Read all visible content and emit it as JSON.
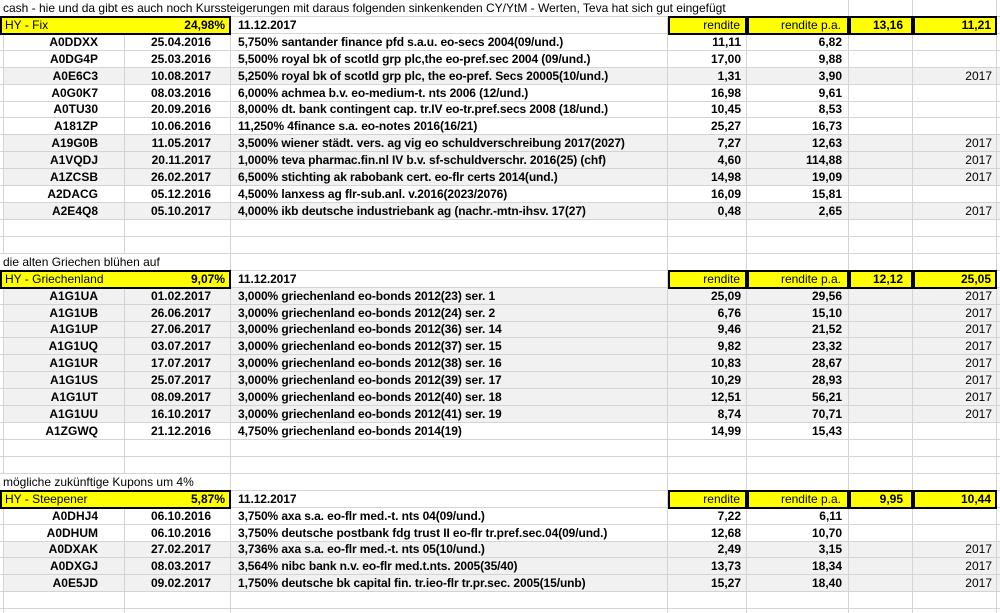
{
  "title_note": "cash - hie und da gibt es auch noch Kurssteigerungen mit daraus folgenden sinkenkenden CY/YtM - Werten, Teva hat sich gut eingefügt",
  "colors": {
    "cell_highlight": "#ffff00",
    "row_stripe": "#f1f1f1",
    "gridline": "#d4d4d4",
    "border_black": "#000000",
    "background": "#ffffff",
    "text": "#000000"
  },
  "sections": [
    {
      "label": "HY - Fix",
      "percent": "24,98%",
      "date": "11.12.2017",
      "note_above": "",
      "header": {
        "col_rendite": "rendite",
        "col_rendite_pa": "rendite p.a.",
        "metric1": "13,16",
        "metric2": "11,21"
      },
      "rows": [
        {
          "wkn": "A0DDXX",
          "kauf_datum": "25.04.2016",
          "beschreibung": "5,750% santander finance pfd s.a.u. eo-secs 2004(09/und.)",
          "rendite": "11,11",
          "rendite_pa": "6,82",
          "jahr": ""
        },
        {
          "wkn": "A0DG4P",
          "kauf_datum": "25.03.2016",
          "beschreibung": "5,500% royal bk of scotld grp plc,the eo-pref.sec 2004 (09/und.)",
          "rendite": "17,00",
          "rendite_pa": "9,88",
          "jahr": ""
        },
        {
          "wkn": "A0E6C3",
          "kauf_datum": "10.08.2017",
          "beschreibung": "5,250% royal bk of scotld grp plc, the eo-pref. Secs 20005(10/und.)",
          "rendite": "1,31",
          "rendite_pa": "3,90",
          "jahr": "2017"
        },
        {
          "wkn": "A0G0K7",
          "kauf_datum": "08.03.2016",
          "beschreibung": "6,000% achmea b.v. eo-medium-t. nts 2006 (12/und.)",
          "rendite": "16,98",
          "rendite_pa": "9,61",
          "jahr": ""
        },
        {
          "wkn": "A0TU30",
          "kauf_datum": "20.09.2016",
          "beschreibung": "8,000% dt. bank contingent cap. tr.IV eo-tr.pref.secs 2008 (18/und.)",
          "rendite": "10,45",
          "rendite_pa": "8,53",
          "jahr": ""
        },
        {
          "wkn": "A181ZP",
          "kauf_datum": "10.06.2016",
          "beschreibung": "11,250% 4finance s.a. eo-notes 2016(16/21)",
          "rendite": "25,27",
          "rendite_pa": "16,73",
          "jahr": ""
        },
        {
          "wkn": "A19G0B",
          "kauf_datum": "11.05.2017",
          "beschreibung": "3,500% wiener städt. vers. ag vig eo schuldverschreibung 2017(2027)",
          "rendite": "7,27",
          "rendite_pa": "12,63",
          "jahr": "2017"
        },
        {
          "wkn": "A1VQDJ",
          "kauf_datum": "20.11.2017",
          "beschreibung": "1,000% teva pharmac.fin.nl IV b.v. sf-schuldverschr. 2016(25) (chf)",
          "rendite": "4,60",
          "rendite_pa": "114,88",
          "jahr": "2017"
        },
        {
          "wkn": "A1ZCSB",
          "kauf_datum": "26.02.2017",
          "beschreibung": "6,500% stichting ak rabobank cert. eo-flr certs 2014(und.)",
          "rendite": "14,98",
          "rendite_pa": "19,09",
          "jahr": "2017"
        },
        {
          "wkn": "A2DACG",
          "kauf_datum": "05.12.2016",
          "beschreibung": "4,500% lanxess ag flr-sub.anl. v.2016(2023/2076)",
          "rendite": "16,09",
          "rendite_pa": "15,81",
          "jahr": ""
        },
        {
          "wkn": "A2E4Q8",
          "kauf_datum": "05.10.2017",
          "beschreibung": "4,000% ikb deutsche industriebank ag (nachr.-mtn-ihsv. 17(27)",
          "rendite": "0,48",
          "rendite_pa": "2,65",
          "jahr": "2017"
        }
      ]
    },
    {
      "label": "HY - Griechenland",
      "percent": "9,07%",
      "date": "11.12.2017",
      "note_above": "die alten Griechen blühen auf",
      "header": {
        "col_rendite": "rendite",
        "col_rendite_pa": "rendite p.a.",
        "metric1": "12,12",
        "metric2": "25,05"
      },
      "rows": [
        {
          "wkn": "A1G1UA",
          "kauf_datum": "01.02.2017",
          "beschreibung": "3,000% griechenland eo-bonds 2012(23) ser. 1",
          "rendite": "25,09",
          "rendite_pa": "29,56",
          "jahr": "2017"
        },
        {
          "wkn": "A1G1UB",
          "kauf_datum": "26.06.2017",
          "beschreibung": "3,000% griechenland eo-bonds 2012(24) ser. 2",
          "rendite": "6,76",
          "rendite_pa": "15,10",
          "jahr": "2017"
        },
        {
          "wkn": "A1G1UP",
          "kauf_datum": "27.06.2017",
          "beschreibung": "3,000% griechenland eo-bonds 2012(36) ser. 14",
          "rendite": "9,46",
          "rendite_pa": "21,52",
          "jahr": "2017"
        },
        {
          "wkn": "A1G1UQ",
          "kauf_datum": "03.07.2017",
          "beschreibung": "3,000% griechenland eo-bonds 2012(37) ser. 15",
          "rendite": "9,82",
          "rendite_pa": "23,32",
          "jahr": "2017"
        },
        {
          "wkn": "A1G1UR",
          "kauf_datum": "17.07.2017",
          "beschreibung": "3,000% griechenland eo-bonds 2012(38) ser. 16",
          "rendite": "10,83",
          "rendite_pa": "28,67",
          "jahr": "2017"
        },
        {
          "wkn": "A1G1US",
          "kauf_datum": "25.07.2017",
          "beschreibung": "3,000% griechenland eo-bonds 2012(39) ser. 17",
          "rendite": "10,29",
          "rendite_pa": "28,93",
          "jahr": "2017"
        },
        {
          "wkn": "A1G1UT",
          "kauf_datum": "08.09.2017",
          "beschreibung": "3,000% griechenland eo-bonds 2012(40) ser. 18",
          "rendite": "12,51",
          "rendite_pa": "56,21",
          "jahr": "2017"
        },
        {
          "wkn": "A1G1UU",
          "kauf_datum": "16.10.2017",
          "beschreibung": "3,000% griechenland eo-bonds 2012(41) ser. 19",
          "rendite": "8,74",
          "rendite_pa": "70,71",
          "jahr": "2017"
        },
        {
          "wkn": "A1ZGWQ",
          "kauf_datum": "21.12.2016",
          "beschreibung": "4,750% griechenland eo-bonds 2014(19)",
          "rendite": "14,99",
          "rendite_pa": "15,43",
          "jahr": ""
        }
      ]
    },
    {
      "label": "HY - Steepener",
      "percent": "5,87%",
      "date": "11.12.2017",
      "note_above": "mögliche zukünftige Kupons um 4%",
      "header": {
        "col_rendite": "rendite",
        "col_rendite_pa": "rendite p.a.",
        "metric1": "9,95",
        "metric2": "10,44"
      },
      "rows": [
        {
          "wkn": "A0DHJ4",
          "kauf_datum": "06.10.2016",
          "beschreibung": "3,750% axa s.a. eo-flr med.-t. nts 04(09/und.)",
          "rendite": "7,22",
          "rendite_pa": "6,11",
          "jahr": ""
        },
        {
          "wkn": "A0DHUM",
          "kauf_datum": "06.10.2016",
          "beschreibung": "3,750% deutsche postbank fdg trust II eo-flr tr.pref.sec.04(09/und.)",
          "rendite": "12,68",
          "rendite_pa": "10,70",
          "jahr": ""
        },
        {
          "wkn": "A0DXAK",
          "kauf_datum": "27.02.2017",
          "beschreibung": "3,736% axa s.a. eo-flr med.-t. nts 05(10/und.)",
          "rendite": "2,49",
          "rendite_pa": "3,15",
          "jahr": "2017"
        },
        {
          "wkn": "A0DXGJ",
          "kauf_datum": "08.03.2017",
          "beschreibung": "3,564% nibc bank n.v. eo-flr med.t.nts. 2005(35/40)",
          "rendite": "13,73",
          "rendite_pa": "18,34",
          "jahr": "2017"
        },
        {
          "wkn": "A0E5JD",
          "kauf_datum": "09.02.2017",
          "beschreibung": "1,750% deutsche bk capital fin. tr.ieo-flr tr.pr.sec. 2005(15/unb)",
          "rendite": "15,27",
          "rendite_pa": "18,40",
          "jahr": "2017"
        }
      ]
    }
  ]
}
